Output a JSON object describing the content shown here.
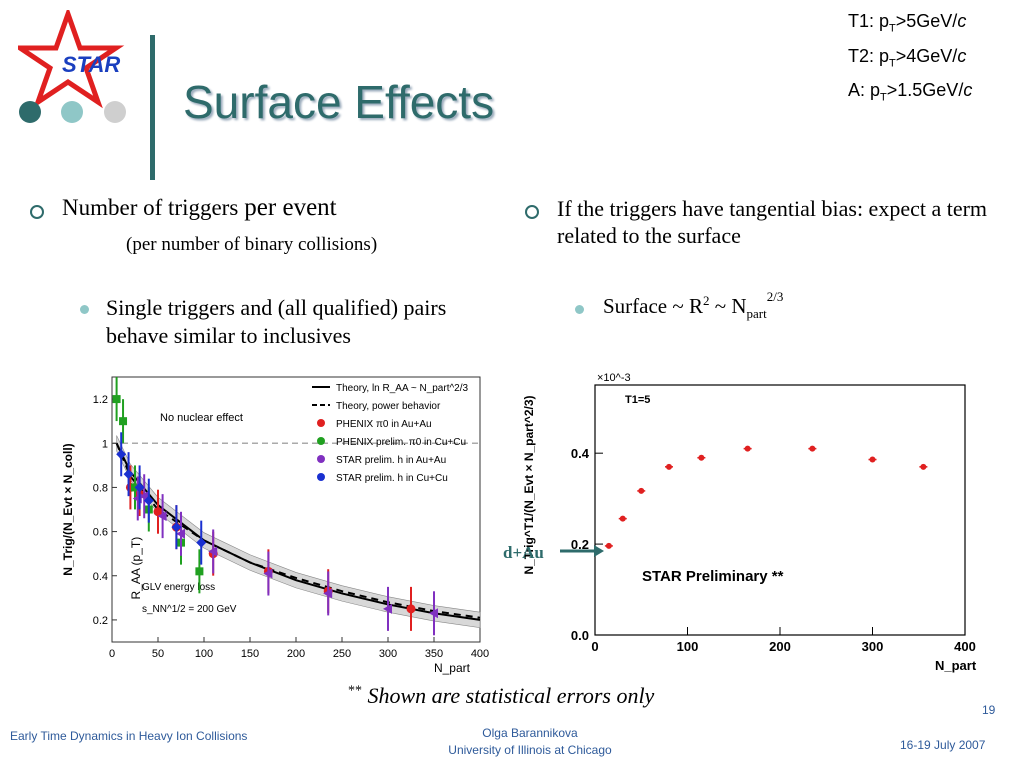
{
  "title": "Surface Effects",
  "logo_text": "STAR",
  "trigger_defs": [
    {
      "label": "T1:",
      "p": "p",
      "sub": "T",
      "rest": ">5GeV/",
      "c": "c"
    },
    {
      "label": "T2:",
      "p": "p",
      "sub": "T",
      "rest": ">4GeV/",
      "c": "c"
    },
    {
      "label": "A:",
      "p": "p",
      "sub": "T",
      "rest": ">1.5GeV/",
      "c": "c"
    }
  ],
  "left": {
    "bullet_a": "Number of triggers",
    "bullet_b": "per event",
    "sub_note": "(per number of binary collisions)",
    "sub_bullet": "Single triggers and (all qualified) pairs behave similar to inclusives"
  },
  "right": {
    "bullet": "If the triggers have tangential bias: expect a term related to the surface",
    "sub_bullet_a": "Surface ~ R",
    "sub_bullet_sup1": "2",
    "sub_bullet_b": " ~ N",
    "sub_bullet_sub": "part",
    "sub_bullet_sup2": "2/3"
  },
  "dau_label": "d+Au",
  "note_stars": "**",
  "note_text": "Shown are statistical errors only",
  "footer": {
    "left": "Early Time Dynamics in Heavy Ion Collisions",
    "center1": "Olga Barannikova",
    "center2": "University of Illinois at Chicago",
    "right": "16-19 July 2007",
    "page": "19"
  },
  "colors": {
    "accent": "#2e6b6b",
    "star_red": "#e02020",
    "star_blue": "#1a3fbf"
  },
  "chart_data": [
    {
      "type": "scatter",
      "xlabel": "N_part",
      "ylabel": "R_AA (p_T)",
      "outer_ylabel": "N_Trig/(N_Evt × N_coll)",
      "xlim": [
        0,
        400
      ],
      "ylim": [
        0.1,
        1.3
      ],
      "xticks": [
        0,
        50,
        100,
        150,
        200,
        250,
        300,
        350,
        400
      ],
      "yticks": [
        0.2,
        0.4,
        0.6,
        0.8,
        1,
        1.2
      ],
      "reference_line": 1,
      "annotations": [
        "No nuclear effect",
        "GLV energy loss",
        "s_NN^1/2 = 200 GeV"
      ],
      "legend": [
        "Theory, ln R_AA ~ N_part^2/3",
        "Theory, power behavior",
        "PHENIX π0 in Au+Au",
        "PHENIX prelim. π0 in Cu+Cu",
        "STAR prelim. h in Au+Au",
        "STAR prelim. h in Cu+Cu"
      ],
      "series": [
        {
          "name": "PHENIX π0 in Au+Au",
          "color": "#e02020",
          "marker": "circle",
          "x": [
            20,
            30,
            50,
            70,
            110,
            170,
            235,
            325
          ],
          "y": [
            0.8,
            0.77,
            0.69,
            0.62,
            0.5,
            0.42,
            0.33,
            0.25
          ]
        },
        {
          "name": "PHENIX prelim. π0 in Cu+Cu",
          "color": "#20a020",
          "marker": "square",
          "x": [
            5,
            12,
            25,
            40,
            75,
            95
          ],
          "y": [
            1.2,
            1.1,
            0.8,
            0.7,
            0.55,
            0.42
          ]
        },
        {
          "name": "STAR prelim. h in Au+Au",
          "color": "#8030c0",
          "marker": "triangle",
          "x": [
            28,
            35,
            55,
            75,
            110,
            170,
            235,
            300,
            350
          ],
          "y": [
            0.75,
            0.76,
            0.67,
            0.59,
            0.51,
            0.41,
            0.32,
            0.25,
            0.23
          ]
        },
        {
          "name": "STAR prelim. h in Cu+Cu",
          "color": "#1a30d0",
          "marker": "diamond",
          "x": [
            10,
            18,
            30,
            40,
            70,
            97
          ],
          "y": [
            0.95,
            0.86,
            0.8,
            0.74,
            0.62,
            0.55
          ]
        }
      ],
      "curves": [
        {
          "name": "Theory, ln R_AA ~ N_part^2/3",
          "dash": "solid",
          "x": [
            5,
            20,
            50,
            100,
            150,
            200,
            250,
            300,
            350,
            400
          ],
          "y": [
            1.0,
            0.87,
            0.72,
            0.56,
            0.46,
            0.38,
            0.32,
            0.27,
            0.23,
            0.2
          ]
        },
        {
          "name": "Theory, power behavior",
          "dash": "dashed",
          "x": [
            5,
            20,
            50,
            100,
            150,
            200,
            250,
            300,
            350,
            400
          ],
          "y": [
            1.0,
            0.85,
            0.7,
            0.56,
            0.46,
            0.39,
            0.33,
            0.28,
            0.24,
            0.21
          ]
        }
      ]
    },
    {
      "type": "scatter",
      "xlabel": "N_part",
      "ylabel": "N_Trig^T1/(N_Evt × N_part^2/3)",
      "scale_note": "×10^-3",
      "inner_label": "T1=5",
      "annotation": "STAR Preliminary **",
      "xlim": [
        0,
        400
      ],
      "ylim": [
        0,
        0.55
      ],
      "xticks": [
        0,
        100,
        200,
        300,
        400
      ],
      "yticks": [
        0.0,
        0.2,
        0.4
      ],
      "ytick_labels": [
        "0.0",
        "0.2",
        "0.4"
      ],
      "series": [
        {
          "name": "",
          "color": "#e02020",
          "x": [
            15,
            30,
            50,
            80,
            115,
            165,
            235,
            300,
            355
          ],
          "y": [
            0.196,
            0.256,
            0.317,
            0.37,
            0.39,
            0.41,
            0.41,
            0.386,
            0.37
          ]
        }
      ]
    }
  ]
}
